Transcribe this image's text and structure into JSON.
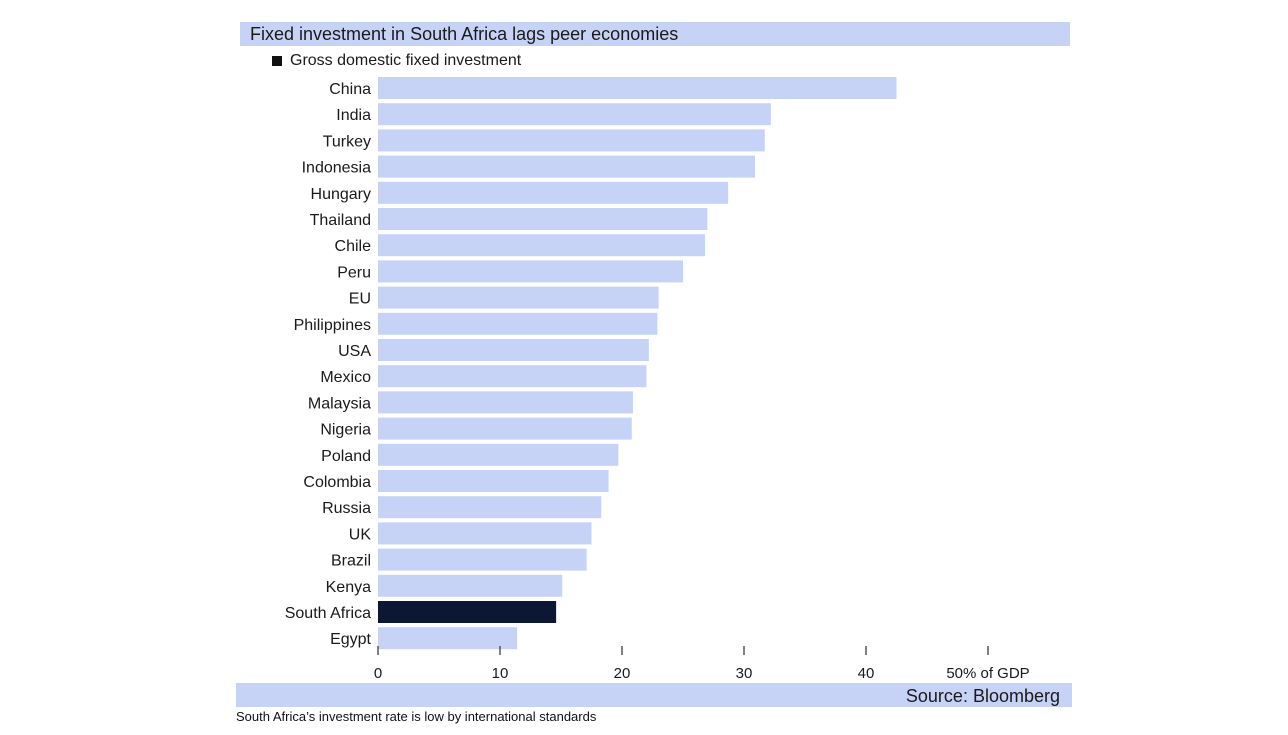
{
  "chart_data": {
    "type": "bar",
    "orientation": "horizontal",
    "title": "Fixed investment in South Africa lags peer economies",
    "legend": {
      "label": "Gross domestic fixed investment",
      "placement": "top-left"
    },
    "categories": [
      "China",
      "India",
      "Turkey",
      "Indonesia",
      "Hungary",
      "Thailand",
      "Chile",
      "Peru",
      "EU",
      "Philippines",
      "USA",
      "Mexico",
      "Malaysia",
      "Nigeria",
      "Poland",
      "Colombia",
      "Russia",
      "UK",
      "Brazil",
      "Kenya",
      "South Africa",
      "Egypt"
    ],
    "values": [
      42.5,
      32.2,
      31.7,
      30.9,
      28.7,
      27.0,
      26.8,
      25.0,
      23.0,
      22.9,
      22.2,
      22.0,
      20.9,
      20.8,
      19.7,
      18.9,
      18.3,
      17.5,
      17.1,
      15.1,
      14.6,
      11.4
    ],
    "highlight": "South Africa",
    "xlim": [
      0,
      50
    ],
    "xticks": [
      0,
      10,
      20,
      30,
      40,
      50
    ],
    "xtick_labels": [
      "0",
      "10",
      "20",
      "30",
      "40",
      "50% of GDP"
    ],
    "colors": {
      "bar": "#c6d3f6",
      "highlight": "#0c1833",
      "band": "#c6d3f6",
      "text": "#1a1a1a"
    },
    "grid": false,
    "source": "Source: Bloomberg"
  },
  "caption": "South Africa’s investment rate is low by international standards"
}
